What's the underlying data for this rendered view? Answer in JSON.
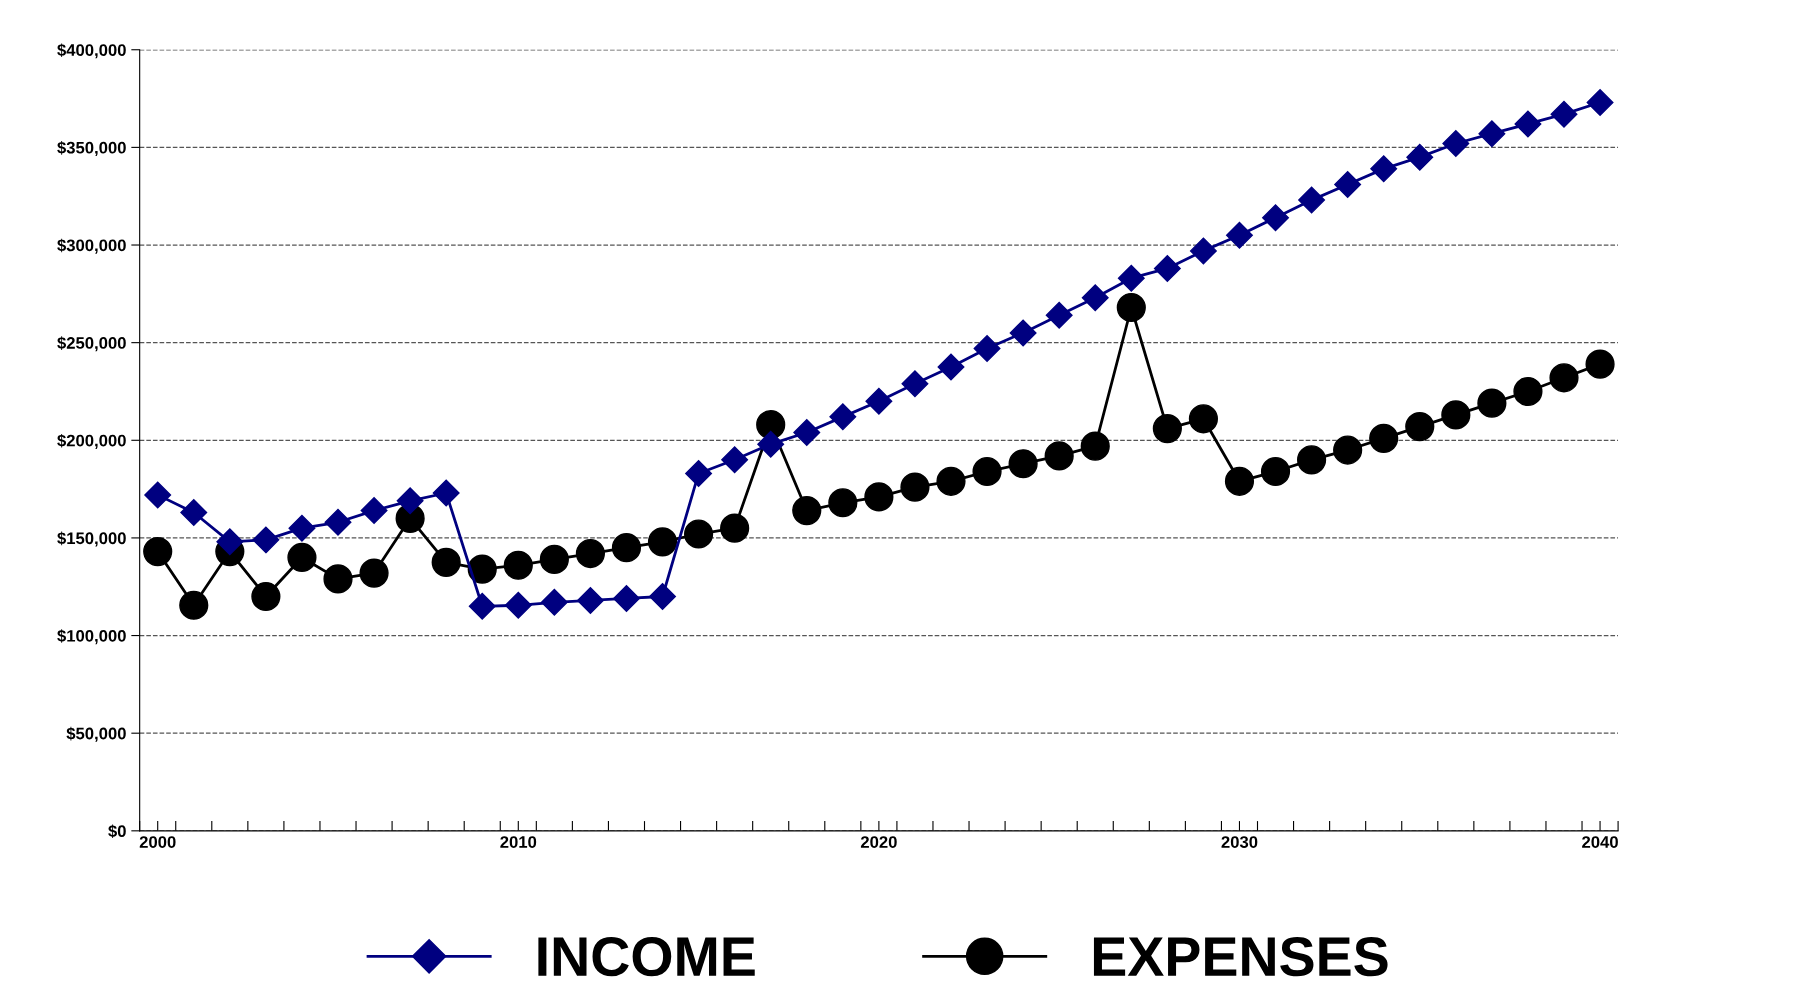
{
  "chart_data": {
    "type": "line",
    "x": [
      2000,
      2001,
      2002,
      2003,
      2004,
      2005,
      2006,
      2007,
      2008,
      2009,
      2010,
      2011,
      2012,
      2013,
      2014,
      2015,
      2016,
      2017,
      2018,
      2019,
      2020,
      2021,
      2022,
      2023,
      2024,
      2025,
      2026,
      2027,
      2028,
      2029,
      2030,
      2031,
      2032,
      2033,
      2034,
      2035,
      2036,
      2037,
      2038,
      2039,
      2040
    ],
    "series": [
      {
        "name": "INCOME",
        "color": "#000080",
        "marker": "diamond",
        "values": [
          172000,
          163000,
          148000,
          149000,
          155000,
          158000,
          164000,
          169000,
          173000,
          115000,
          115500,
          117000,
          118000,
          119000,
          120000,
          183000,
          190000,
          198000,
          204000,
          212000,
          220000,
          229000,
          237500,
          247000,
          255000,
          264000,
          273000,
          283000,
          288000,
          297000,
          305000,
          314000,
          323000,
          331000,
          339000,
          345000,
          352000,
          357000,
          362000,
          367000,
          373000
        ]
      },
      {
        "name": "EXPENSES",
        "color": "#000000",
        "marker": "circle",
        "values": [
          143000,
          115500,
          143000,
          120000,
          140000,
          129000,
          132000,
          160000,
          137500,
          134000,
          136000,
          139000,
          142000,
          145000,
          148000,
          152000,
          155000,
          208000,
          164000,
          168000,
          171000,
          176000,
          179000,
          184000,
          188000,
          192000,
          197000,
          268000,
          206000,
          211000,
          179000,
          184000,
          190000,
          195000,
          201000,
          207000,
          213000,
          219000,
          225000,
          232000,
          239000
        ]
      }
    ],
    "xlim": [
      1999.5,
      2040.5
    ],
    "xticks": [
      2000,
      2010,
      2020,
      2030,
      2040,
      {
        "value": 1999.5,
        "label": null
      },
      {
        "value": 2000.5,
        "label": null
      },
      {
        "value": 2001.5,
        "label": null
      },
      {
        "value": 2002.5,
        "label": null
      },
      {
        "value": 2003.5,
        "label": null
      },
      {
        "value": 2004.5,
        "label": null
      },
      {
        "value": 2005.5,
        "label": null
      },
      {
        "value": 2006.5,
        "label": null
      },
      {
        "value": 2007.5,
        "label": null
      },
      {
        "value": 2008.5,
        "label": null
      },
      {
        "value": 2009.5,
        "label": null
      },
      {
        "value": 2010.5,
        "label": null
      },
      {
        "value": 2011.5,
        "label": null
      },
      {
        "value": 2012.5,
        "label": null
      },
      {
        "value": 2013.5,
        "label": null
      },
      {
        "value": 2014.5,
        "label": null
      },
      {
        "value": 2015.5,
        "label": null
      },
      {
        "value": 2016.5,
        "label": null
      },
      {
        "value": 2017.5,
        "label": null
      },
      {
        "value": 2018.5,
        "label": null
      },
      {
        "value": 2019.5,
        "label": null
      },
      {
        "value": 2020.5,
        "label": null
      },
      {
        "value": 2021.5,
        "label": null
      },
      {
        "value": 2022.5,
        "label": null
      },
      {
        "value": 2023.5,
        "label": null
      },
      {
        "value": 2024.5,
        "label": null
      },
      {
        "value": 2025.5,
        "label": null
      },
      {
        "value": 2026.5,
        "label": null
      },
      {
        "value": 2027.5,
        "label": null
      },
      {
        "value": 2028.5,
        "label": null
      },
      {
        "value": 2029.5,
        "label": null
      },
      {
        "value": 2030.5,
        "label": null
      },
      {
        "value": 2031.5,
        "label": null
      },
      {
        "value": 2032.5,
        "label": null
      },
      {
        "value": 2033.5,
        "label": null
      },
      {
        "value": 2034.5,
        "label": null
      },
      {
        "value": 2035.5,
        "label": null
      },
      {
        "value": 2036.5,
        "label": null
      },
      {
        "value": 2037.5,
        "label": null
      },
      {
        "value": 2038.5,
        "label": null
      },
      {
        "value": 2039.5,
        "label": null
      },
      {
        "value": 2040.5,
        "label": null
      }
    ],
    "ylim": [
      0,
      400000
    ],
    "yticks": [
      {
        "value": 0,
        "label": "$0"
      },
      {
        "value": 50000,
        "label": "$50,000"
      },
      {
        "value": 100000,
        "label": "$100,000"
      },
      {
        "value": 150000,
        "label": "$150,000"
      },
      {
        "value": 200000,
        "label": "$200,000"
      },
      {
        "value": 250000,
        "label": "$250,000"
      },
      {
        "value": 300000,
        "label": "$300,000"
      },
      {
        "value": 350000,
        "label": "$350,000"
      },
      {
        "value": 400000,
        "label": "$400,000"
      }
    ],
    "grid": "y",
    "legend": "bottom",
    "line_style": "solid"
  }
}
